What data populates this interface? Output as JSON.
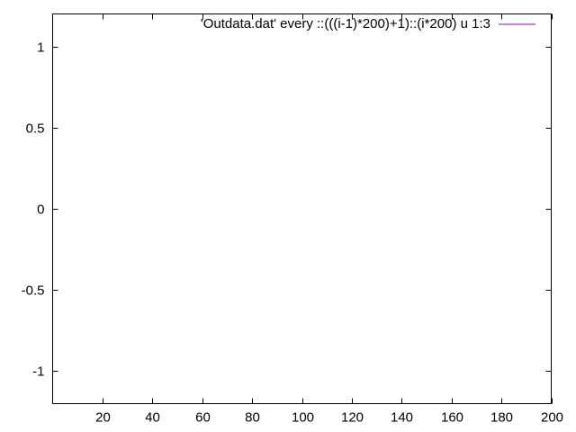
{
  "chart_data": {
    "type": "line",
    "title": "",
    "xlabel": "",
    "ylabel": "",
    "xlim": [
      0,
      200
    ],
    "ylim": [
      -1.2,
      1.2
    ],
    "x_ticks": [
      20,
      40,
      60,
      80,
      100,
      120,
      140,
      160,
      180,
      200
    ],
    "x_tick_labels": [
      "20",
      "40",
      "60",
      "80",
      "100",
      "120",
      "140",
      "160",
      "180",
      "200"
    ],
    "y_ticks": [
      1,
      0.5,
      0,
      -0.5,
      -1
    ],
    "y_tick_labels": [
      "1",
      "0.5",
      "0",
      "-0.5",
      "-1"
    ],
    "grid": false,
    "legend_position": "top-right",
    "series": [
      {
        "name": "'Outdata.dat' every ::(((i-1)*200)+1)::(i*200) u 1:3",
        "color": "#9400d3",
        "x": [],
        "y": []
      }
    ]
  }
}
